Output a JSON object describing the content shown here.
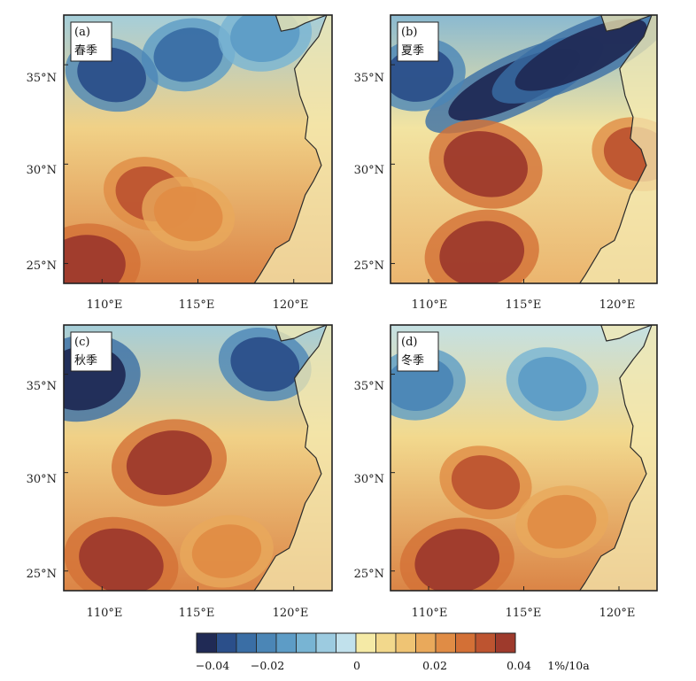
{
  "figure": {
    "panels": [
      {
        "id": "a",
        "tag": "(a)",
        "season": "春季"
      },
      {
        "id": "b",
        "tag": "(b)",
        "season": "夏季"
      },
      {
        "id": "c",
        "tag": "(c)",
        "season": "秋季"
      },
      {
        "id": "d",
        "tag": "(d)",
        "season": "冬季"
      }
    ],
    "lat_ticks": [
      "35°N",
      "30°N",
      "25°N"
    ],
    "lon_ticks": [
      "110°E",
      "115°E",
      "120°E"
    ],
    "colorbar": {
      "tick_labels": [
        "−0.04",
        "−0.02",
        "0",
        "0.02",
        "0.04"
      ],
      "unit": "1%/10a",
      "colors": [
        "#202a55",
        "#2b4f8a",
        "#3a6ea5",
        "#4b86b6",
        "#5d9cc6",
        "#78b4d3",
        "#9ccbe0",
        "#c1e1ec",
        "#f5eaa6",
        "#f2d88c",
        "#efc474",
        "#e9a95b",
        "#e08c45",
        "#d37036",
        "#bd5430",
        "#9e3a2c"
      ]
    }
  },
  "chart_data": {
    "type": "heatmap",
    "title": "",
    "variable_unit": "1%/10a",
    "value_range": [
      -0.045,
      0.045
    ],
    "lat_range": [
      24,
      37.5
    ],
    "lon_range": [
      108,
      122
    ],
    "panels": [
      {
        "id": "a",
        "season": "春季",
        "features": [
          {
            "lon": 114.5,
            "lat": 35.5,
            "value": -0.03
          },
          {
            "lon": 110.5,
            "lat": 34.5,
            "value": -0.035
          },
          {
            "lon": 118.5,
            "lat": 36.5,
            "value": -0.02
          },
          {
            "lon": 112.5,
            "lat": 28.5,
            "value": 0.035
          },
          {
            "lon": 109.0,
            "lat": 24.8,
            "value": 0.045
          },
          {
            "lon": 114.5,
            "lat": 27.5,
            "value": 0.025
          }
        ]
      },
      {
        "id": "b",
        "season": "夏季",
        "features": [
          {
            "lon": 114.5,
            "lat": 34.0,
            "value": -0.045
          },
          {
            "lon": 118.0,
            "lat": 35.5,
            "value": -0.045
          },
          {
            "lon": 109.5,
            "lat": 34.5,
            "value": -0.035
          },
          {
            "lon": 113.0,
            "lat": 30.0,
            "value": 0.045
          },
          {
            "lon": 112.8,
            "lat": 25.5,
            "value": 0.045
          },
          {
            "lon": 121.0,
            "lat": 30.5,
            "value": 0.035
          }
        ]
      },
      {
        "id": "c",
        "season": "秋季",
        "features": [
          {
            "lon": 109.0,
            "lat": 34.8,
            "value": -0.045
          },
          {
            "lon": 118.5,
            "lat": 35.5,
            "value": -0.035
          },
          {
            "lon": 113.5,
            "lat": 30.5,
            "value": 0.045
          },
          {
            "lon": 111.0,
            "lat": 25.5,
            "value": 0.045
          },
          {
            "lon": 116.5,
            "lat": 26.0,
            "value": 0.025
          }
        ]
      },
      {
        "id": "d",
        "season": "冬季",
        "features": [
          {
            "lon": 109.5,
            "lat": 34.5,
            "value": -0.025
          },
          {
            "lon": 116.5,
            "lat": 34.5,
            "value": -0.02
          },
          {
            "lon": 111.5,
            "lat": 25.5,
            "value": 0.045
          },
          {
            "lon": 113.0,
            "lat": 29.5,
            "value": 0.035
          },
          {
            "lon": 117.0,
            "lat": 27.5,
            "value": 0.025
          }
        ]
      }
    ]
  }
}
